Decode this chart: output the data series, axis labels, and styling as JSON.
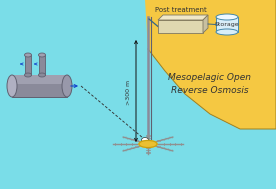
{
  "fig_width": 2.76,
  "fig_height": 1.89,
  "dpi": 100,
  "bg_ocean": "#7ADDE8",
  "bg_land": "#F5C842",
  "text_main": "#333333",
  "title_text": "Mesopelagic Open\nReverse Osmosis",
  "label_depth": ">300 m",
  "label_post": "Post treatment",
  "label_storage": "Storage",
  "pipe_color": "#8A8A9A",
  "pipe_dark": "#606070",
  "pipe_mid": "#A0A0B0",
  "gold_disk": "#C8A010",
  "gold_disk_light": "#ECC030",
  "arrow_color": "#111111",
  "blue_arrow": "#1144CC",
  "membrane_color": "#909090",
  "box_color": "#E0D8B0",
  "box_top": "#F0E8C8",
  "box_side": "#C8C0A0",
  "box_edge": "#807860",
  "storage_fill": "#D8EEF8",
  "storage_top": "#EEF8FF",
  "storage_edge": "#4488AA",
  "line_color": "#336688",
  "dashed_color": "#333333"
}
